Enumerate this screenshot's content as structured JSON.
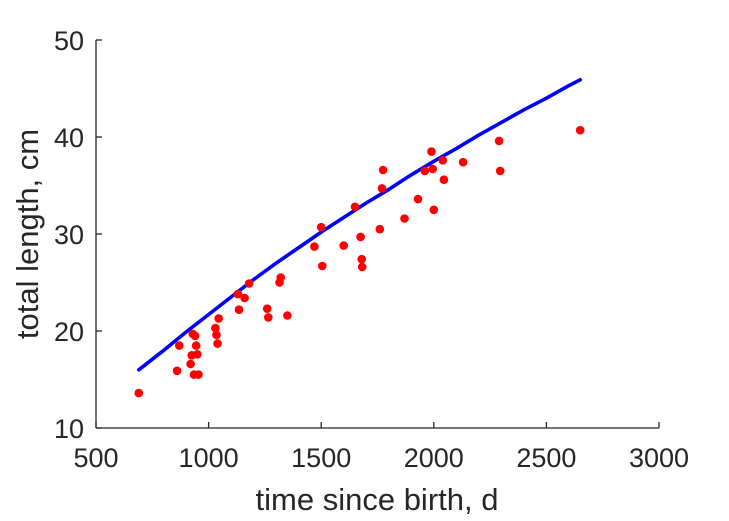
{
  "chart_data": {
    "type": "scatter",
    "title": "",
    "xlabel": "time since birth, d",
    "ylabel": "total length, cm",
    "xlim": [
      500,
      3000
    ],
    "ylim": [
      10,
      50
    ],
    "xticks": [
      500,
      1000,
      1500,
      2000,
      2500,
      3000
    ],
    "yticks": [
      10,
      20,
      30,
      40,
      50
    ],
    "grid": false,
    "legend": "none",
    "colors": {
      "points": "#ff0000",
      "curve": "#0000ff",
      "axis": "#262626"
    },
    "series": [
      {
        "kind": "points",
        "x": [
          690,
          860,
          870,
          920,
          925,
          930,
          935,
          940,
          945,
          950,
          955,
          1030,
          1035,
          1040,
          1045,
          1130,
          1135,
          1160,
          1180,
          1260,
          1265,
          1315,
          1320,
          1350,
          1470,
          1500,
          1505,
          1600,
          1650,
          1675,
          1680,
          1682,
          1760,
          1770,
          1775,
          1870,
          1930,
          1960,
          1990,
          1995,
          2000,
          2040,
          2045,
          2130,
          2290,
          2295,
          2650
        ],
        "y": [
          13.6,
          15.9,
          18.5,
          16.6,
          17.5,
          19.7,
          15.5,
          19.5,
          18.5,
          17.6,
          15.5,
          20.3,
          19.6,
          18.7,
          21.3,
          23.8,
          22.2,
          23.4,
          24.9,
          22.3,
          21.4,
          25.0,
          25.5,
          21.6,
          28.7,
          30.7,
          26.7,
          28.8,
          32.8,
          29.7,
          27.4,
          26.6,
          30.5,
          34.7,
          36.6,
          31.6,
          33.6,
          36.5,
          38.5,
          36.7,
          32.5,
          37.6,
          35.6,
          37.4,
          39.6,
          36.5,
          40.7
        ]
      },
      {
        "kind": "line",
        "x": [
          690,
          800,
          900,
          1000,
          1100,
          1200,
          1300,
          1400,
          1500,
          1600,
          1700,
          1800,
          1900,
          2000,
          2100,
          2200,
          2300,
          2400,
          2500,
          2600,
          2650
        ],
        "y": [
          16.0,
          18.0,
          19.9,
          21.7,
          23.5,
          25.3,
          27.0,
          28.6,
          30.2,
          31.7,
          33.2,
          34.6,
          36.1,
          37.5,
          38.8,
          40.2,
          41.5,
          42.8,
          44.0,
          45.3,
          45.9
        ]
      }
    ]
  }
}
